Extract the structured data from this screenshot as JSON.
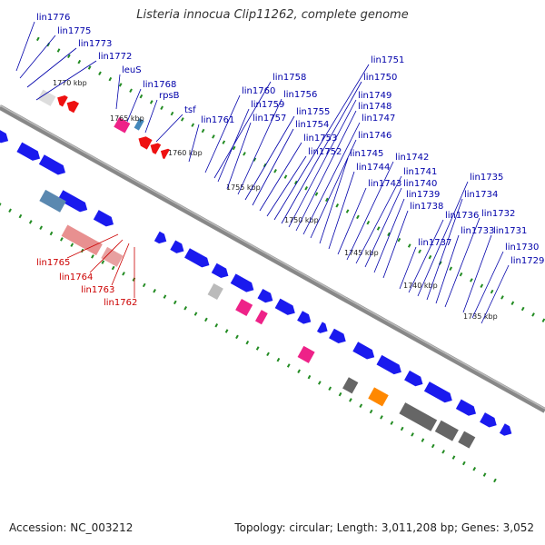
{
  "title": "Listeria innocua Clip11262, complete genome",
  "footer": {
    "accession": "Accession: NC_003212",
    "summary": "Topology: circular; Length: 3,011,208 bp; Genes: 3,052"
  },
  "colors": {
    "background": "#ffffff",
    "backbone": "#888888",
    "forward_gene": "#1a1aee",
    "reverse_gene": "#ee1111",
    "tick": "#228b22",
    "label_forward": "#0000aa",
    "label_reverse": "#cc0000",
    "rrna": "#e8e8e8",
    "trna": "#ee2288"
  },
  "scale_marks": [
    "1770 kbp",
    "1765 kbp",
    "1760 kbp",
    "1755 kbp",
    "1750 kbp",
    "1745 kbp",
    "1740 kbp",
    "1735 kbp"
  ],
  "gene_labels_forward": [
    "lin1776",
    "lin1775",
    "lin1773",
    "lin1772",
    "leuS",
    "lin1768",
    "rpsB",
    "tsf",
    "lin1761",
    "lin1760",
    "lin1758",
    "lin1759",
    "lin1757",
    "lin1756",
    "lin1755",
    "lin1754",
    "lin1753",
    "lin1752",
    "lin1751",
    "lin1750",
    "lin1749",
    "lin1748",
    "lin1747",
    "lin1746",
    "lin1745",
    "lin1744",
    "lin1743",
    "lin1742",
    "lin1741",
    "lin1740",
    "lin1739",
    "lin1738",
    "lin1737",
    "lin1736",
    "lin1735",
    "lin1734",
    "lin1733",
    "lin1732",
    "lin1731",
    "lin1730",
    "lin1729"
  ],
  "gene_labels_reverse": [
    "lin1765",
    "lin1764",
    "lin1763",
    "lin1762"
  ]
}
